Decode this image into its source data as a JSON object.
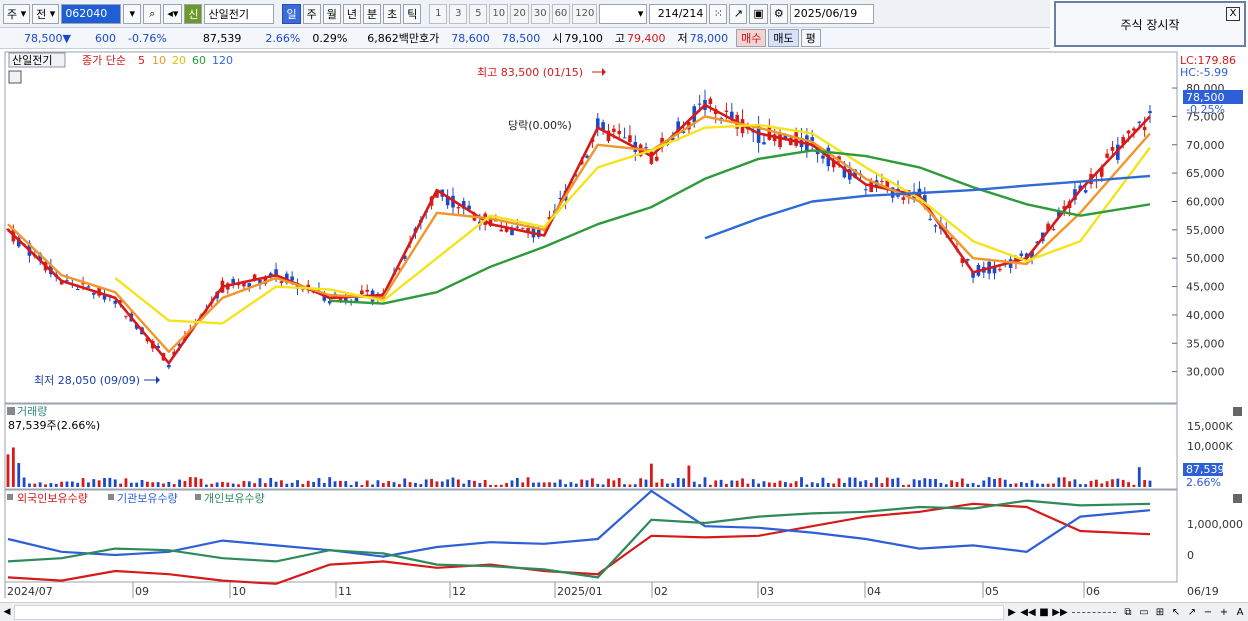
{
  "toolbar": {
    "period_type": "주",
    "compare_label": "전",
    "stock_code": "062040",
    "stock_badge": "신",
    "stock_name": "산일전기",
    "timeframes": [
      "일",
      "주",
      "월",
      "년",
      "분",
      "초",
      "틱"
    ],
    "active_timeframe": "일",
    "minute_options": [
      "1",
      "3",
      "5",
      "10",
      "20",
      "30",
      "60",
      "120"
    ],
    "count_display": "214",
    "count_total": "/214",
    "date": "2025/06/19"
  },
  "notice": {
    "text": "주식 장시작",
    "close_label": "X"
  },
  "quote": {
    "price": "78,500",
    "direction_arrow": "▼",
    "change": "600",
    "change_pct": "-0.76%",
    "volume": "87,539",
    "volume_pct": "2.66%",
    "turnover_pct": "0.29%",
    "amount": "6,862백만",
    "hoga_label": "호가",
    "ask": "78,600",
    "bid": "78,500",
    "open_label": "시",
    "open": "79,100",
    "high_label": "고",
    "high": "79,400",
    "low_label": "저",
    "low": "78,000",
    "buy_label": "매수",
    "sell_label": "매도",
    "eval_label": "평"
  },
  "price_panel": {
    "stock_tag": "산일전기",
    "legend_prefix": "종가 단순",
    "ma_periods": [
      "5",
      "10",
      "20",
      "60",
      "120"
    ],
    "ma_colors": [
      "#d61a1a",
      "#f0962a",
      "#f5e31c",
      "#2e9a3a",
      "#2e6bd6"
    ],
    "lc": "LC:179.86",
    "hc": "HC:-5.99",
    "current_price_tag": "78,500",
    "current_pct_tag": "-0.25%",
    "max_label": "최고 83,500 (01/15)",
    "min_label": "최저 28,050 (09/09)",
    "event_label": "당락(0.00%)"
  },
  "volume_panel": {
    "title": "거래량",
    "current": "87,539주(2.66%)",
    "current_tag": "87,539",
    "current_pct_tag": "2.66%",
    "axis": [
      "15,000K",
      "10,000K"
    ]
  },
  "holding_panel": {
    "series": [
      "외국인보유수량",
      "기관보유수량",
      "개인보유수량"
    ],
    "colors": [
      "#d61a1a",
      "#2e5fd6",
      "#2e8a5a"
    ],
    "axis": [
      "1,000,000",
      "0"
    ]
  },
  "x_axis": {
    "labels": [
      "2024/07",
      "09",
      "10",
      "11",
      "12",
      "2025/01",
      "02",
      "03",
      "04",
      "05",
      "06"
    ],
    "last_date": "06/19"
  },
  "chart_data": {
    "type": "line",
    "title": "",
    "y_ticks": [
      80000,
      75000,
      70000,
      65000,
      60000,
      55000,
      50000,
      45000,
      40000,
      35000,
      30000
    ],
    "y_tick_labels": [
      "80,000",
      "75,000",
      "70,000",
      "65,000",
      "60,000",
      "55,000",
      "50,000",
      "45,000",
      "40,000",
      "35,000",
      "30,000"
    ],
    "ylim": [
      25000,
      86000
    ],
    "max_point": {
      "date": "01/15",
      "value": 83500
    },
    "min_point": {
      "date": "09/09",
      "value": 28050
    },
    "x": [
      0,
      10,
      20,
      30,
      40,
      50,
      60,
      70,
      80,
      90,
      100,
      110,
      120,
      130,
      140,
      150,
      160,
      170,
      180,
      190,
      200,
      213
    ],
    "series": [
      {
        "name": "5",
        "values": [
          55000,
          46000,
          43000,
          31500,
          45000,
          47000,
          43000,
          43500,
          62000,
          56000,
          54000,
          73000,
          68000,
          77000,
          72000,
          70000,
          63000,
          61000,
          47500,
          50000,
          62000,
          75000
        ]
      },
      {
        "name": "10",
        "values": [
          56000,
          47000,
          44000,
          33500,
          43000,
          46500,
          43500,
          43000,
          58000,
          57000,
          55000,
          70000,
          69000,
          75000,
          73000,
          70500,
          64000,
          60000,
          50000,
          49000,
          58000,
          72000
        ]
      },
      {
        "name": "20",
        "values": [
          null,
          null,
          46500,
          39000,
          38500,
          45000,
          44500,
          42500,
          50000,
          57500,
          55500,
          66000,
          69000,
          73000,
          73500,
          72000,
          66000,
          60500,
          53000,
          49500,
          53000,
          69500
        ]
      },
      {
        "name": "60",
        "values": [
          null,
          null,
          null,
          null,
          null,
          null,
          42500,
          42000,
          44000,
          48500,
          52000,
          56000,
          59000,
          64000,
          67500,
          69000,
          68000,
          66000,
          62500,
          59500,
          57500,
          59500
        ]
      },
      {
        "name": "120",
        "values": [
          null,
          null,
          null,
          null,
          null,
          null,
          null,
          null,
          null,
          null,
          null,
          null,
          null,
          53500,
          57000,
          60000,
          61000,
          61500,
          62000,
          62800,
          63500,
          64500
        ]
      }
    ]
  }
}
